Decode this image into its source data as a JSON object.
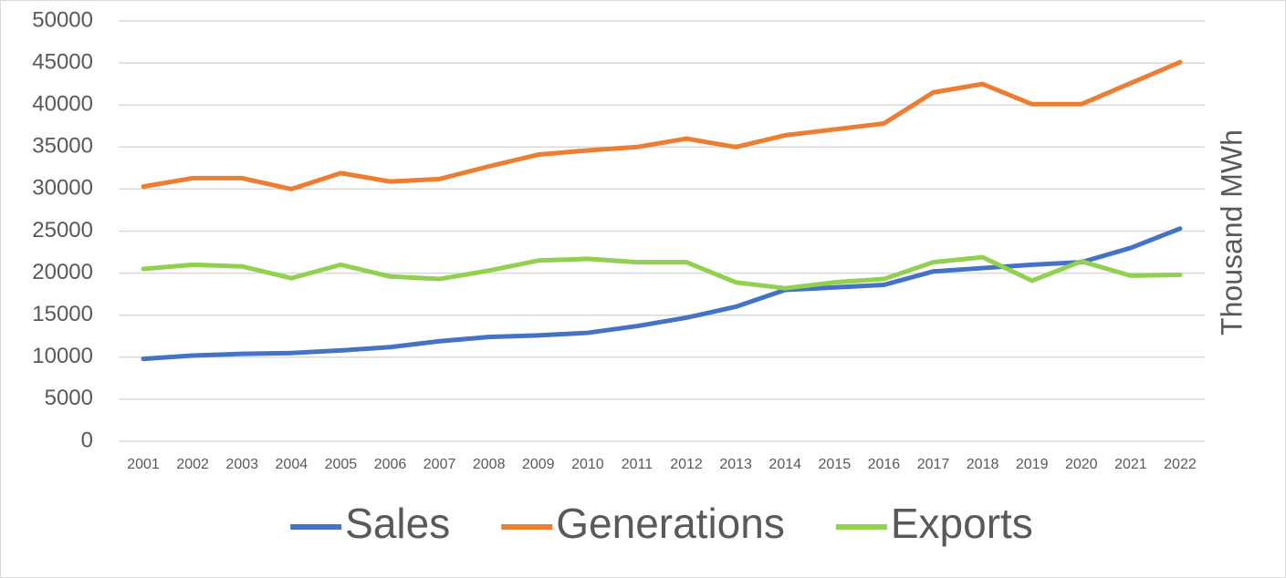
{
  "chart_data": {
    "type": "line",
    "axis_label_right": "Thousand MWh",
    "categories": [
      "2001",
      "2002",
      "2003",
      "2004",
      "2005",
      "2006",
      "2007",
      "2008",
      "2009",
      "2010",
      "2011",
      "2012",
      "2013",
      "2014",
      "2015",
      "2016",
      "2017",
      "2018",
      "2019",
      "2020",
      "2021",
      "2022"
    ],
    "series": [
      {
        "name": "Sales",
        "color": "#4472c4",
        "values": [
          9800,
          10200,
          10400,
          10500,
          10800,
          11200,
          11900,
          12400,
          12600,
          12900,
          13700,
          14700,
          16000,
          18000,
          18300,
          18600,
          20200,
          20600,
          21000,
          21300,
          23000,
          25300
        ]
      },
      {
        "name": "Generations",
        "color": "#ed7d31",
        "values": [
          30300,
          31300,
          31300,
          30000,
          31900,
          30900,
          31200,
          32700,
          34100,
          34600,
          35000,
          36000,
          35000,
          36400,
          37100,
          37800,
          41500,
          42500,
          40100,
          40100,
          42600,
          45100
        ]
      },
      {
        "name": "Exports",
        "color": "#92d050",
        "values": [
          20500,
          21000,
          20800,
          19400,
          21000,
          19600,
          19300,
          20300,
          21500,
          21700,
          21300,
          21300,
          18900,
          18200,
          18900,
          19300,
          21300,
          21900,
          19100,
          21400,
          19700,
          19800
        ]
      }
    ],
    "ylim": [
      0,
      50000
    ],
    "yticks": [
      0,
      5000,
      10000,
      15000,
      20000,
      25000,
      30000,
      35000,
      40000,
      45000,
      50000
    ],
    "grid": true,
    "legend": "bottom"
  }
}
